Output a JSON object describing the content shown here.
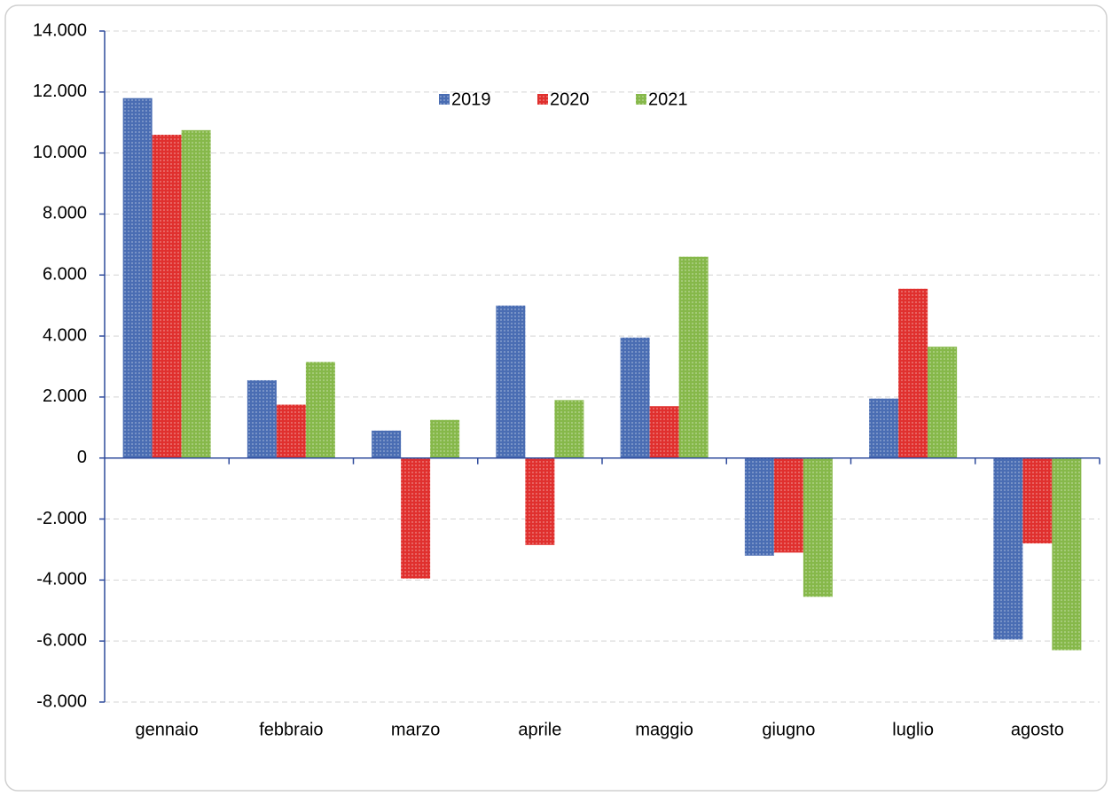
{
  "chart_data": {
    "type": "bar",
    "categories": [
      "gennaio",
      "febbraio",
      "marzo",
      "aprile",
      "maggio",
      "giugno",
      "luglio",
      "agosto"
    ],
    "series": [
      {
        "name": "2019",
        "color": "#4a6db3",
        "values": [
          11800,
          2550,
          900,
          5000,
          3950,
          -3200,
          1950,
          -5950
        ]
      },
      {
        "name": "2020",
        "color": "#e0302e",
        "values": [
          10600,
          1750,
          -3950,
          -2850,
          1700,
          -3100,
          5550,
          -2800
        ]
      },
      {
        "name": "2021",
        "color": "#86b84a",
        "values": [
          10750,
          3150,
          1250,
          1900,
          6600,
          -4550,
          3650,
          -6300
        ]
      }
    ],
    "ylim": [
      -8000,
      14000
    ],
    "yticks": [
      {
        "value": -8000,
        "label": "-8.000"
      },
      {
        "value": -6000,
        "label": "-6.000"
      },
      {
        "value": -4000,
        "label": "-4.000"
      },
      {
        "value": -2000,
        "label": "-2.000"
      },
      0,
      {
        "value": 2000,
        "label": "2.000"
      },
      {
        "value": 4000,
        "label": "4.000"
      },
      {
        "value": 6000,
        "label": "6.000"
      },
      {
        "value": 8000,
        "label": "8.000"
      },
      {
        "value": 10000,
        "label": "10.000"
      },
      {
        "value": 12000,
        "label": "12.000"
      },
      {
        "value": 14000,
        "label": "14.000"
      }
    ],
    "grid": true,
    "legend": "top"
  }
}
